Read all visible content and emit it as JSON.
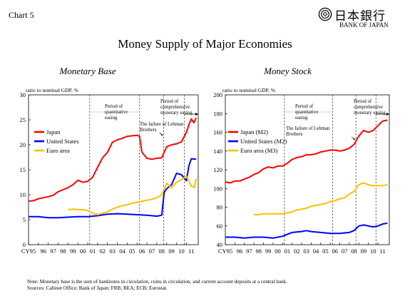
{
  "chart_label": "Chart 5",
  "title": "Money Supply of Major Economies",
  "logo": {
    "jp": "日本銀行",
    "en": "BANK OF JAPAN",
    "icon": "boj-emblem-icon"
  },
  "footnote": {
    "note": "Note: Monetary base is the sum of banknotes in circulation, coins in circulation, and current account deposits at a central bank.",
    "sources": "Sources: Cabinet Office; Bank of Japan; FRB; BEA; ECB; Eurostat."
  },
  "chart_data": [
    {
      "type": "line",
      "title": "Monetary Base",
      "ylabel": "ratio to nominal GDP, %",
      "ylim": [
        0,
        30
      ],
      "yticks": [
        0,
        5,
        10,
        15,
        20,
        25,
        30
      ],
      "xlim": [
        1995,
        2012.2
      ],
      "xticks": [
        1995,
        1996,
        1997,
        1998,
        1999,
        2000,
        2001,
        2002,
        2003,
        2004,
        2005,
        2006,
        2007,
        2008,
        2009,
        2010,
        2011
      ],
      "xtick_labels": [
        "CY95",
        "96",
        "97",
        "98",
        "99",
        "00",
        "01",
        "02",
        "03",
        "04",
        "05",
        "06",
        "07",
        "08",
        "09",
        "10",
        "11"
      ],
      "legend": {
        "placement": "left-middle"
      },
      "vlines": [
        {
          "x": 2001.2,
          "label": [
            "Period of",
            "quantitative",
            "easing"
          ]
        },
        {
          "x": 2006.25,
          "label": []
        },
        {
          "x": 2008.7,
          "label": [
            "The failure of Lehman",
            "Brothers"
          ]
        },
        {
          "x": 2010.8,
          "label": [
            "Period of",
            "comprehensive",
            "monetary easing"
          ]
        }
      ],
      "series": [
        {
          "name": "Japan",
          "color": "#ff0000",
          "x": [
            1995.0,
            1995.5,
            1996.0,
            1996.5,
            1997.0,
            1997.5,
            1998.0,
            1998.5,
            1999.0,
            1999.5,
            2000.0,
            2000.5,
            2001.0,
            2001.5,
            2002.0,
            2002.5,
            2003.0,
            2003.5,
            2004.0,
            2004.5,
            2005.0,
            2005.5,
            2006.0,
            2006.25,
            2006.5,
            2007.0,
            2007.5,
            2008.0,
            2008.5,
            2009.0,
            2009.5,
            2010.0,
            2010.5,
            2011.0,
            2011.25,
            2011.5,
            2011.75,
            2012.0
          ],
          "y": [
            8.7,
            8.8,
            9.2,
            9.4,
            9.6,
            9.9,
            10.6,
            11.0,
            11.4,
            12.0,
            12.9,
            12.5,
            12.7,
            13.5,
            15.5,
            17.4,
            18.5,
            20.5,
            21.0,
            21.3,
            21.7,
            21.8,
            21.9,
            21.7,
            18.5,
            17.3,
            17.1,
            17.3,
            17.4,
            19.6,
            20.0,
            20.2,
            20.6,
            22.5,
            24.0,
            25.2,
            24.4,
            25.4
          ]
        },
        {
          "name": "United States",
          "color": "#0000ff",
          "x": [
            1995.0,
            1996.0,
            1997.0,
            1998.0,
            1999.0,
            2000.0,
            2001.0,
            2002.0,
            2003.0,
            2004.0,
            2005.0,
            2006.0,
            2007.0,
            2008.0,
            2008.5,
            2008.75,
            2009.0,
            2009.5,
            2010.0,
            2010.5,
            2011.0,
            2011.25,
            2011.5,
            2012.0
          ],
          "y": [
            5.6,
            5.6,
            5.4,
            5.4,
            5.5,
            5.6,
            5.6,
            5.8,
            6.1,
            6.2,
            6.1,
            6.0,
            5.9,
            5.7,
            5.9,
            10.5,
            11.2,
            12.0,
            14.3,
            14.0,
            12.8,
            15.8,
            17.2,
            17.1
          ]
        },
        {
          "name": "Euro area",
          "color": "#ffc000",
          "x": [
            1999.0,
            1999.5,
            2000.0,
            2000.5,
            2001.0,
            2001.5,
            2002.0,
            2002.5,
            2003.0,
            2003.5,
            2004.0,
            2004.5,
            2005.0,
            2005.5,
            2006.0,
            2006.5,
            2007.0,
            2007.5,
            2008.0,
            2008.5,
            2009.0,
            2009.5,
            2010.0,
            2010.5,
            2011.0,
            2011.5,
            2011.8,
            2012.0
          ],
          "y": [
            7.0,
            7.1,
            7.0,
            7.0,
            6.8,
            6.3,
            6.0,
            6.3,
            6.6,
            7.1,
            7.5,
            7.8,
            8.0,
            8.3,
            8.5,
            8.7,
            8.9,
            9.1,
            9.4,
            10.0,
            12.3,
            11.4,
            12.5,
            13.0,
            13.7,
            11.7,
            11.5,
            13.2
          ]
        }
      ]
    },
    {
      "type": "line",
      "title": "Money Stock",
      "ylabel": "ratio to nominal GDP, %",
      "ylim": [
        40,
        200
      ],
      "yticks": [
        40,
        60,
        80,
        100,
        120,
        140,
        160,
        180,
        200
      ],
      "xlim": [
        1995,
        2012.2
      ],
      "xticks": [
        1995,
        1996,
        1997,
        1998,
        1999,
        2000,
        2001,
        2002,
        2003,
        2004,
        2005,
        2006,
        2007,
        2008,
        2009,
        2010,
        2011
      ],
      "xtick_labels": [
        "CY95",
        "96",
        "97",
        "98",
        "99",
        "00",
        "01",
        "02",
        "03",
        "04",
        "05",
        "06",
        "07",
        "08",
        "09",
        "10",
        "11"
      ],
      "legend": {
        "placement": "left-middle"
      },
      "vlines": [
        {
          "x": 2001.2,
          "label": [
            "Period of",
            "quantitative",
            "easing"
          ]
        },
        {
          "x": 2006.25,
          "label": []
        },
        {
          "x": 2008.7,
          "label": [
            "The failure of Lehman",
            "Brothers"
          ]
        },
        {
          "x": 2010.8,
          "label": [
            "Period of",
            "comprehensive",
            "monetary easing"
          ]
        }
      ],
      "series": [
        {
          "name": "Japan (M2)",
          "color": "#ff0000",
          "x": [
            1995.0,
            1995.5,
            1996.0,
            1996.5,
            1997.0,
            1997.5,
            1998.0,
            1998.5,
            1999.0,
            1999.5,
            2000.0,
            2000.5,
            2001.0,
            2001.5,
            2002.0,
            2002.5,
            2003.0,
            2003.5,
            2004.0,
            2004.5,
            2005.0,
            2005.5,
            2006.0,
            2006.5,
            2007.0,
            2007.5,
            2008.0,
            2008.5,
            2009.0,
            2009.5,
            2010.0,
            2010.5,
            2011.0,
            2011.5,
            2012.0
          ],
          "y": [
            107,
            106,
            108,
            108,
            110,
            112,
            115,
            117,
            121,
            123,
            122,
            124,
            124,
            127,
            131,
            133,
            134,
            136,
            136,
            137,
            139,
            140,
            141,
            141,
            140,
            141,
            143,
            147,
            156,
            162,
            160,
            162,
            167,
            172,
            173
          ]
        },
        {
          "name": "United States (M2)",
          "color": "#0000ff",
          "x": [
            1995.0,
            1996.0,
            1997.0,
            1998.0,
            1999.0,
            2000.0,
            2001.0,
            2001.5,
            2002.0,
            2003.0,
            2003.5,
            2004.0,
            2005.0,
            2006.0,
            2007.0,
            2008.0,
            2008.5,
            2009.0,
            2009.5,
            2010.0,
            2010.5,
            2011.0,
            2011.5,
            2012.0
          ],
          "y": [
            48,
            48,
            47,
            48,
            48,
            47,
            49,
            51,
            53,
            54,
            55,
            54,
            53,
            52,
            52,
            53,
            55,
            60,
            61,
            60,
            59,
            60,
            62,
            63
          ]
        },
        {
          "name": "Euro area (M3)",
          "color": "#ffc000",
          "x": [
            1998.0,
            1998.5,
            1999.0,
            1999.5,
            2000.0,
            2000.5,
            2001.0,
            2001.5,
            2002.0,
            2002.5,
            2003.0,
            2003.5,
            2004.0,
            2004.5,
            2005.0,
            2005.5,
            2006.0,
            2006.5,
            2007.0,
            2007.5,
            2008.0,
            2008.5,
            2009.0,
            2009.5,
            2010.0,
            2010.5,
            2011.0,
            2011.5,
            2012.0
          ],
          "y": [
            72,
            72,
            73,
            73,
            73,
            73,
            73,
            74,
            75,
            77,
            78,
            79,
            81,
            82,
            83,
            84,
            86,
            87,
            89,
            90,
            94,
            97,
            104,
            106,
            104,
            103,
            103,
            103,
            104
          ]
        }
      ]
    }
  ]
}
